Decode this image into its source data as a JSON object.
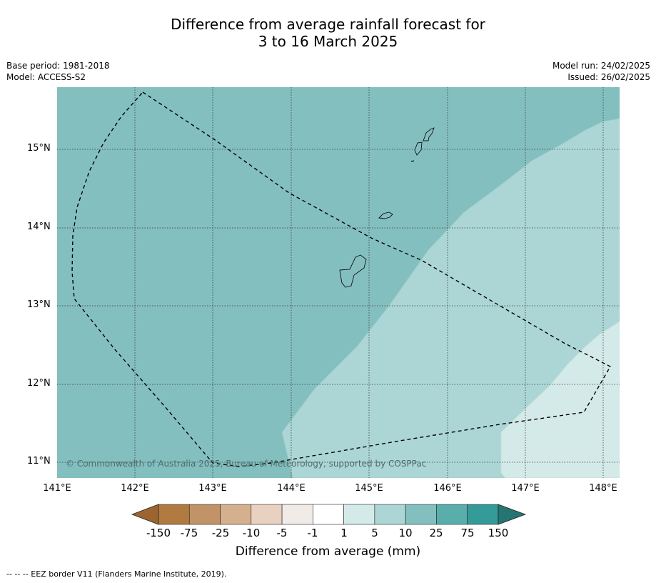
{
  "title_line1": "Difference from average rainfall forecast for",
  "title_line2": "3 to 16 March 2025",
  "meta_left": [
    "Base period: 1981-2018",
    "Model: ACCESS-S2"
  ],
  "meta_right": [
    "Model run: 24/02/2025",
    "Issued: 26/02/2025"
  ],
  "lat_labels": [
    "15°N",
    "14°N",
    "13°N",
    "12°N",
    "11°N"
  ],
  "lon_labels": [
    "141°E",
    "142°E",
    "143°E",
    "144°E",
    "145°E",
    "146°E",
    "147°E",
    "148°E"
  ],
  "colorbar": {
    "labels": [
      "-150",
      "-75",
      "-25",
      "-10",
      "-5",
      "-1",
      "1",
      "5",
      "10",
      "25",
      "75",
      "150"
    ],
    "colors": [
      "#9c6530",
      "#b07a40",
      "#c19367",
      "#d5b08f",
      "#e8d1c0",
      "#f0ebe7",
      "#ffffff",
      "#d4eae8",
      "#acd6d5",
      "#84bfbf",
      "#59aeac",
      "#349b98",
      "#257573"
    ],
    "title": "Difference from average (mm)"
  },
  "copyright": "© Commonwealth of Australia 2025, Bureau of Meteorology, supported by COSPPac",
  "footnote": "--  --  -- EEZ border V11 (Flanders Marine Institute, 2019)."
}
